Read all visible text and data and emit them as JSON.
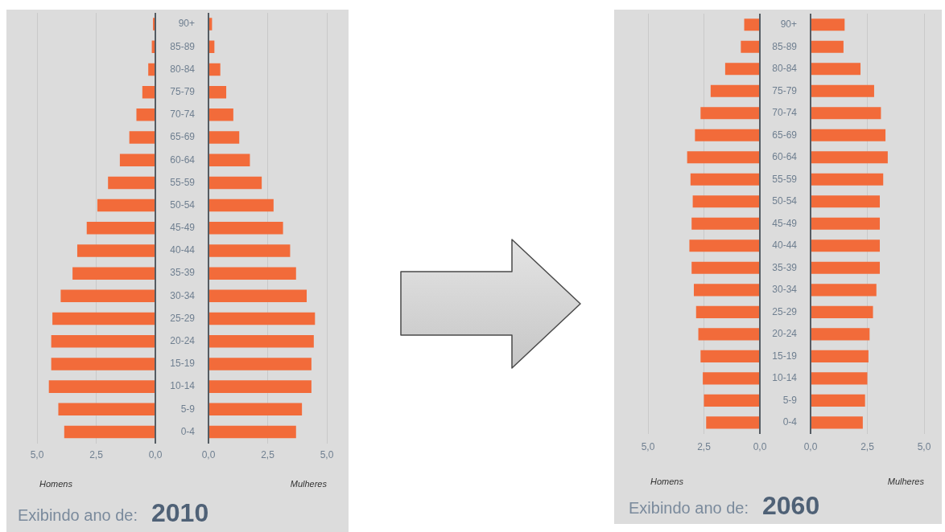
{
  "chart_data": [
    {
      "type": "bar",
      "orientation": "horizontal",
      "categories": [
        null,
        null,
        null,
        null,
        null,
        null,
        null,
        null,
        null,
        null,
        null,
        null,
        null,
        null,
        null,
        null,
        null,
        null,
        null
      ],
      "color": "#f26b3a",
      "values": [
        0.1,
        0.15,
        0.3,
        0.55,
        0.8,
        1.1,
        1.5,
        2.0,
        2.45,
        2.9,
        3.3,
        3.5,
        4.0,
        4.35,
        4.4,
        4.4,
        4.5,
        4.1,
        3.85
      ],
      "xlim": [
        5,
        0
      ],
      "xticks": [
        {
          "value": 5,
          "label": "5,0"
        },
        {
          "value": 2.5,
          "label": "2,5"
        },
        {
          "value": 0,
          "label": "0,0"
        }
      ],
      "xlabel": "Homens",
      "grid": "x",
      "tick_labels": "x",
      "annotations": [
        "Exibindo ano de:",
        "2010"
      ]
    },
    {
      "type": "bar",
      "orientation": "horizontal",
      "categories": [
        "90+",
        "85-89",
        "80-84",
        "75-79",
        "70-74",
        "65-69",
        "60-64",
        "55-59",
        "50-54",
        "45-49",
        "40-44",
        "35-39",
        "30-34",
        "25-29",
        "20-24",
        "15-19",
        "10-14",
        "5-9",
        "0-4"
      ],
      "color": "#f26b3a",
      "values": [
        0.15,
        0.25,
        0.5,
        0.75,
        1.05,
        1.3,
        1.75,
        2.25,
        2.75,
        3.15,
        3.45,
        3.7,
        4.15,
        4.5,
        4.45,
        4.35,
        4.35,
        3.95,
        3.7
      ],
      "xlim": [
        0,
        5
      ],
      "xticks": [
        {
          "value": 0,
          "label": "0,0"
        },
        {
          "value": 2.5,
          "label": "2,5"
        },
        {
          "value": 5,
          "label": "5,0"
        }
      ],
      "xlabel": "Mulheres",
      "grid": "x"
    },
    {
      "type": "bar",
      "orientation": "horizontal",
      "categories": [
        null,
        null,
        null,
        null,
        null,
        null,
        null,
        null,
        null,
        null,
        null,
        null,
        null,
        null,
        null,
        null,
        null,
        null,
        null
      ],
      "color": "#f26b3a",
      "values": [
        0.7,
        0.85,
        1.55,
        2.2,
        2.65,
        2.9,
        3.25,
        3.1,
        3.0,
        3.05,
        3.15,
        3.05,
        2.95,
        2.85,
        2.75,
        2.65,
        2.55,
        2.5,
        2.4
      ],
      "xlim": [
        5,
        0
      ],
      "xticks": [
        {
          "value": 5,
          "label": "5,0"
        },
        {
          "value": 2.5,
          "label": "2,5"
        },
        {
          "value": 0,
          "label": "0,0"
        }
      ],
      "xlabel": "Homens",
      "grid": "x",
      "tick_labels": "x",
      "annotations": [
        "Exibindo ano de:",
        "2060"
      ]
    },
    {
      "type": "bar",
      "orientation": "horizontal",
      "categories": [
        "90+",
        "85-89",
        "80-84",
        "75-79",
        "70-74",
        "65-69",
        "60-64",
        "55-59",
        "50-54",
        "45-49",
        "40-44",
        "35-39",
        "30-34",
        "25-29",
        "20-24",
        "15-19",
        "10-14",
        "5-9",
        "0-4"
      ],
      "color": "#f26b3a",
      "values": [
        1.5,
        1.45,
        2.2,
        2.8,
        3.1,
        3.3,
        3.4,
        3.2,
        3.05,
        3.05,
        3.05,
        3.05,
        2.9,
        2.75,
        2.6,
        2.55,
        2.5,
        2.4,
        2.3
      ],
      "xlim": [
        0,
        5
      ],
      "xticks": [
        {
          "value": 0,
          "label": "0,0"
        },
        {
          "value": 2.5,
          "label": "2,5"
        },
        {
          "value": 5,
          "label": "5,0"
        }
      ],
      "xlabel": "Mulheres",
      "grid": "x"
    }
  ]
}
